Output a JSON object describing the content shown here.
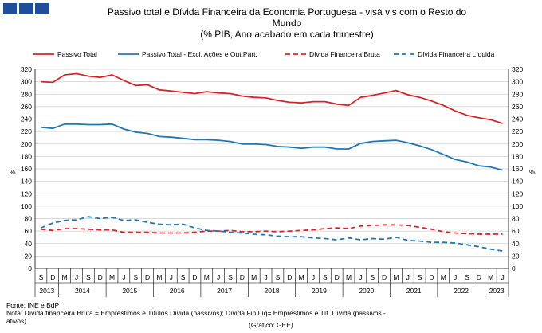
{
  "header": {
    "title_line1": "Passivo total e Dívida Financeira da Economia Portuguesa - visà vis com o Resto do",
    "title_line2": "Mundo",
    "title_line3": "(% PIB, Ano acabado em cada trimestre)"
  },
  "footer": {
    "source": "Fonte: INE e BdP",
    "note_line1": "Nota: Dívida financeira Bruta = Empréstimos e Títulos Dívida (passivos); Dívida Fin.Líq= Empréstimos e Tít. Dívida (passivos -",
    "note_line2": "ativos)",
    "credit": "(Gráfico: GEE)"
  },
  "chart_data": {
    "type": "line",
    "ylabel_left": "%",
    "ylabel_right": "%",
    "ylim": [
      0,
      320
    ],
    "yticks": [
      0,
      20,
      40,
      60,
      80,
      100,
      120,
      140,
      160,
      180,
      200,
      220,
      240,
      260,
      280,
      300,
      320
    ],
    "grid": "horizontal",
    "legend_position": "top",
    "quarter_labels": [
      "S",
      "D",
      "M",
      "J",
      "S",
      "D",
      "M",
      "J",
      "S",
      "D",
      "M",
      "J",
      "S",
      "D",
      "M",
      "J",
      "S",
      "D",
      "M",
      "J",
      "S",
      "D",
      "M",
      "J",
      "S",
      "D",
      "M",
      "J",
      "S",
      "D",
      "M",
      "J",
      "S",
      "D",
      "M",
      "J",
      "S",
      "D",
      "M",
      "J"
    ],
    "years": [
      "2013",
      "2014",
      "2015",
      "2016",
      "2017",
      "2018",
      "2019",
      "2020",
      "2021",
      "2022",
      "2023"
    ],
    "series": [
      {
        "name": "Passivo Total",
        "color": "#d9232a",
        "style": "solid",
        "values": [
          300,
          299,
          311,
          313,
          309,
          307,
          311,
          302,
          294,
          295,
          287,
          285,
          283,
          281,
          284,
          282,
          281,
          277,
          275,
          274,
          270,
          267,
          266,
          268,
          268,
          264,
          262,
          275,
          278,
          282,
          286,
          279,
          275,
          269,
          262,
          253,
          246,
          242,
          239,
          233
        ]
      },
      {
        "name": "Passivo Total - Excl. Ações e Out.Part.",
        "color": "#1f78b4",
        "style": "solid",
        "values": [
          227,
          225,
          232,
          232,
          231,
          231,
          232,
          224,
          219,
          217,
          212,
          211,
          209,
          207,
          207,
          206,
          204,
          200,
          200,
          199,
          196,
          195,
          193,
          195,
          195,
          192,
          192,
          201,
          204,
          205,
          206,
          202,
          197,
          191,
          183,
          175,
          171,
          165,
          163,
          158
        ]
      },
      {
        "name": "Dívida Financeira Bruta",
        "color": "#d9232a",
        "style": "dashed",
        "values": [
          63,
          61,
          64,
          64,
          63,
          62,
          62,
          58,
          58,
          58,
          57,
          57,
          57,
          58,
          60,
          60,
          61,
          59,
          59,
          60,
          59,
          60,
          61,
          62,
          64,
          65,
          64,
          68,
          69,
          70,
          70,
          69,
          66,
          63,
          59,
          57,
          56,
          55,
          55,
          55
        ]
      },
      {
        "name": "Dívida Financeira Líquida",
        "color": "#1f78b4",
        "style": "dashed",
        "values": [
          65,
          73,
          77,
          78,
          83,
          80,
          82,
          77,
          78,
          74,
          71,
          70,
          71,
          65,
          61,
          60,
          58,
          57,
          55,
          54,
          52,
          51,
          51,
          49,
          48,
          46,
          49,
          46,
          48,
          47,
          50,
          45,
          44,
          42,
          42,
          41,
          38,
          35,
          31,
          28
        ]
      }
    ]
  }
}
